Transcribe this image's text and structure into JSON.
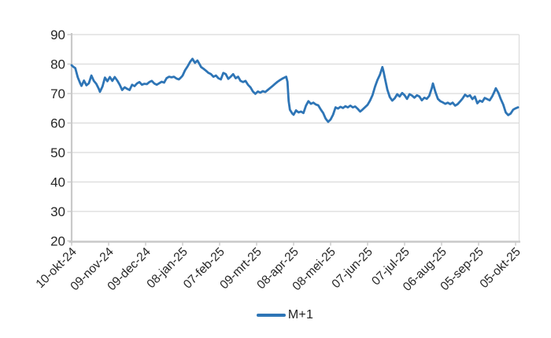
{
  "legend": {
    "label": "M+1"
  },
  "colors": {
    "line": "#2E75B6",
    "gridline": "#DBDBDB",
    "axis": "#C9C9C9",
    "tick": "#C9C9C9",
    "text": "#262626",
    "background": "#FFFFFF"
  },
  "chart_data": {
    "type": "line",
    "title": "",
    "xlabel": "",
    "ylabel": "",
    "ylim": [
      20,
      90
    ],
    "y_ticks": [
      20,
      30,
      40,
      50,
      60,
      70,
      80,
      90
    ],
    "x_tick_labels": [
      "10-okt-24",
      "09-nov-24",
      "09-dec-24",
      "08-jan-25",
      "07-feb-25",
      "09-mrt-25",
      "08-apr-25",
      "08-mei-25",
      "07-jun-25",
      "07-jul-25",
      "06-aug-25",
      "05-sep-25",
      "05-okt-25"
    ],
    "x_tick_days": [
      0,
      30,
      60,
      90,
      120,
      150,
      180,
      210,
      240,
      270,
      300,
      330,
      360
    ],
    "x_range_days": [
      0,
      363
    ],
    "grid": "horizontal",
    "legend_position": "bottom-center",
    "series": [
      {
        "name": "M+1",
        "color": "#2E75B6",
        "points": [
          [
            0,
            79.6
          ],
          [
            1,
            79.2
          ],
          [
            3,
            78.6
          ],
          [
            5,
            75.5
          ],
          [
            7,
            73.4
          ],
          [
            8,
            72.6
          ],
          [
            10,
            74.4
          ],
          [
            12,
            72.8
          ],
          [
            14,
            73.5
          ],
          [
            16,
            76.1
          ],
          [
            18,
            74.3
          ],
          [
            20,
            73.3
          ],
          [
            22,
            71.6
          ],
          [
            23,
            70.6
          ],
          [
            25,
            72.4
          ],
          [
            27,
            75.4
          ],
          [
            29,
            74.2
          ],
          [
            31,
            75.6
          ],
          [
            33,
            74.3
          ],
          [
            35,
            75.6
          ],
          [
            37,
            74.4
          ],
          [
            39,
            73.0
          ],
          [
            41,
            71.2
          ],
          [
            43,
            72.1
          ],
          [
            45,
            71.6
          ],
          [
            47,
            71.2
          ],
          [
            49,
            73.0
          ],
          [
            51,
            72.5
          ],
          [
            53,
            73.4
          ],
          [
            55,
            73.9
          ],
          [
            57,
            73.0
          ],
          [
            59,
            73.3
          ],
          [
            61,
            73.2
          ],
          [
            63,
            73.9
          ],
          [
            65,
            74.3
          ],
          [
            67,
            73.4
          ],
          [
            69,
            73.0
          ],
          [
            71,
            73.5
          ],
          [
            73,
            74.0
          ],
          [
            75,
            73.7
          ],
          [
            77,
            75.2
          ],
          [
            79,
            75.7
          ],
          [
            81,
            75.5
          ],
          [
            83,
            75.7
          ],
          [
            85,
            75.1
          ],
          [
            87,
            74.8
          ],
          [
            89,
            75.6
          ],
          [
            90,
            76.1
          ],
          [
            92,
            77.9
          ],
          [
            94,
            79.2
          ],
          [
            96,
            80.7
          ],
          [
            98,
            81.8
          ],
          [
            100,
            80.4
          ],
          [
            102,
            81.2
          ],
          [
            104,
            79.8
          ],
          [
            105,
            79.0
          ],
          [
            107,
            78.4
          ],
          [
            109,
            77.7
          ],
          [
            111,
            77.0
          ],
          [
            113,
            76.6
          ],
          [
            115,
            75.7
          ],
          [
            117,
            76.1
          ],
          [
            119,
            75.2
          ],
          [
            121,
            74.8
          ],
          [
            123,
            77.0
          ],
          [
            125,
            76.6
          ],
          [
            127,
            75.0
          ],
          [
            129,
            75.7
          ],
          [
            131,
            76.6
          ],
          [
            133,
            75.2
          ],
          [
            135,
            75.7
          ],
          [
            137,
            74.3
          ],
          [
            139,
            73.9
          ],
          [
            141,
            74.3
          ],
          [
            143,
            73.0
          ],
          [
            145,
            72.1
          ],
          [
            147,
            70.7
          ],
          [
            149,
            69.9
          ],
          [
            151,
            70.7
          ],
          [
            153,
            70.3
          ],
          [
            155,
            70.8
          ],
          [
            157,
            70.5
          ],
          [
            159,
            71.2
          ],
          [
            161,
            71.9
          ],
          [
            163,
            72.6
          ],
          [
            165,
            73.3
          ],
          [
            167,
            74.0
          ],
          [
            169,
            74.6
          ],
          [
            171,
            75.1
          ],
          [
            173,
            75.5
          ],
          [
            174,
            75.7
          ],
          [
            175,
            74.0
          ],
          [
            176,
            67.5
          ],
          [
            177,
            64.5
          ],
          [
            179,
            63.2
          ],
          [
            180,
            62.8
          ],
          [
            182,
            64.3
          ],
          [
            184,
            63.6
          ],
          [
            186,
            63.9
          ],
          [
            188,
            63.4
          ],
          [
            190,
            65.9
          ],
          [
            192,
            67.4
          ],
          [
            194,
            66.5
          ],
          [
            196,
            66.9
          ],
          [
            198,
            66.3
          ],
          [
            200,
            66.0
          ],
          [
            202,
            64.6
          ],
          [
            204,
            63.4
          ],
          [
            206,
            61.5
          ],
          [
            208,
            60.4
          ],
          [
            210,
            61.2
          ],
          [
            212,
            62.8
          ],
          [
            214,
            65.3
          ],
          [
            216,
            64.9
          ],
          [
            218,
            65.5
          ],
          [
            220,
            65.1
          ],
          [
            222,
            65.7
          ],
          [
            224,
            65.3
          ],
          [
            226,
            65.9
          ],
          [
            228,
            65.3
          ],
          [
            230,
            65.6
          ],
          [
            232,
            64.8
          ],
          [
            234,
            63.9
          ],
          [
            236,
            64.6
          ],
          [
            238,
            65.4
          ],
          [
            240,
            66.2
          ],
          [
            242,
            67.6
          ],
          [
            244,
            69.5
          ],
          [
            246,
            72.3
          ],
          [
            248,
            74.6
          ],
          [
            250,
            76.4
          ],
          [
            252,
            79.0
          ],
          [
            253,
            77.3
          ],
          [
            254,
            75.3
          ],
          [
            256,
            71.3
          ],
          [
            258,
            68.8
          ],
          [
            260,
            67.6
          ],
          [
            262,
            68.4
          ],
          [
            264,
            69.8
          ],
          [
            266,
            69.0
          ],
          [
            268,
            70.2
          ],
          [
            270,
            69.4
          ],
          [
            272,
            68.2
          ],
          [
            274,
            69.8
          ],
          [
            276,
            69.3
          ],
          [
            278,
            68.6
          ],
          [
            280,
            69.4
          ],
          [
            282,
            69.0
          ],
          [
            284,
            67.7
          ],
          [
            286,
            68.6
          ],
          [
            288,
            68.2
          ],
          [
            290,
            69.2
          ],
          [
            292,
            71.8
          ],
          [
            293,
            73.4
          ],
          [
            295,
            70.5
          ],
          [
            297,
            68.2
          ],
          [
            299,
            67.4
          ],
          [
            301,
            67.0
          ],
          [
            303,
            66.5
          ],
          [
            305,
            66.9
          ],
          [
            307,
            66.4
          ],
          [
            309,
            66.9
          ],
          [
            311,
            65.9
          ],
          [
            313,
            66.4
          ],
          [
            315,
            67.3
          ],
          [
            317,
            68.3
          ],
          [
            319,
            69.6
          ],
          [
            321,
            69.0
          ],
          [
            323,
            69.4
          ],
          [
            325,
            68.1
          ],
          [
            327,
            69.0
          ],
          [
            329,
            66.7
          ],
          [
            331,
            67.6
          ],
          [
            333,
            67.2
          ],
          [
            335,
            68.5
          ],
          [
            337,
            68.1
          ],
          [
            339,
            67.7
          ],
          [
            341,
            69.0
          ],
          [
            343,
            70.8
          ],
          [
            344,
            71.8
          ],
          [
            346,
            70.3
          ],
          [
            348,
            68.1
          ],
          [
            350,
            66.3
          ],
          [
            352,
            63.6
          ],
          [
            354,
            62.7
          ],
          [
            356,
            63.2
          ],
          [
            358,
            64.5
          ],
          [
            360,
            65.0
          ],
          [
            362,
            65.3
          ]
        ]
      }
    ]
  }
}
